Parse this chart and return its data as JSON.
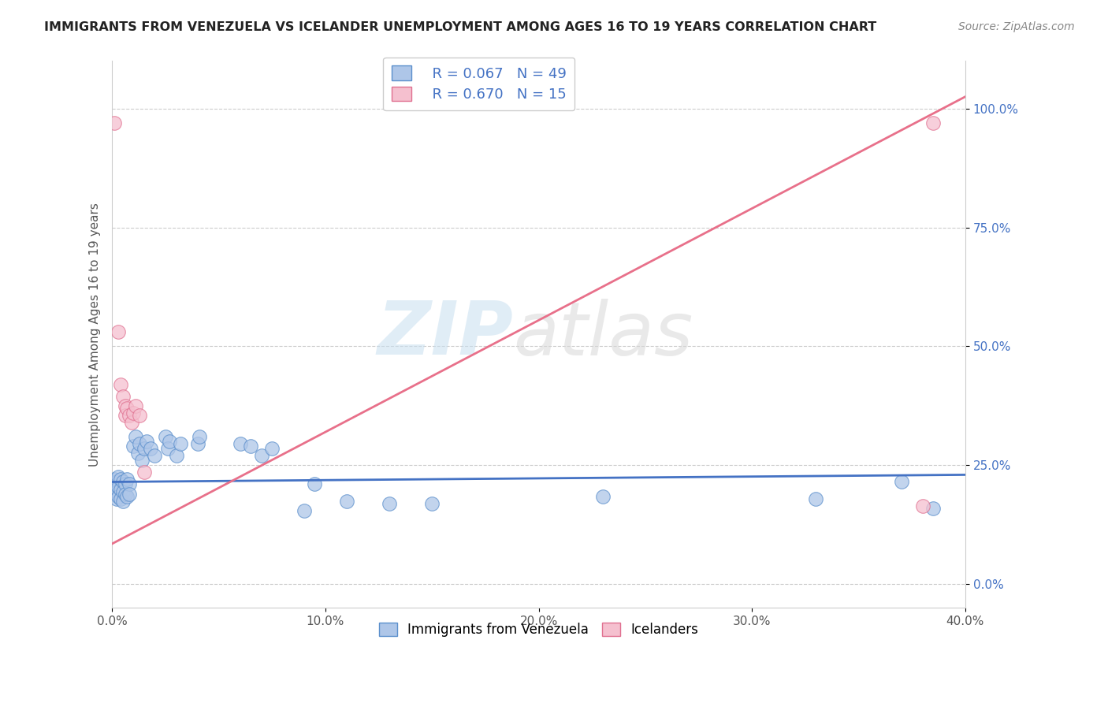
{
  "title": "IMMIGRANTS FROM VENEZUELA VS ICELANDER UNEMPLOYMENT AMONG AGES 16 TO 19 YEARS CORRELATION CHART",
  "source": "Source: ZipAtlas.com",
  "ylabel": "Unemployment Among Ages 16 to 19 years",
  "xlim": [
    0.0,
    0.4
  ],
  "ylim": [
    -0.05,
    1.1
  ],
  "xticks": [
    0.0,
    0.1,
    0.2,
    0.3,
    0.4
  ],
  "xtick_labels": [
    "0.0%",
    "10.0%",
    "20.0%",
    "30.0%",
    "40.0%"
  ],
  "yticks": [
    0.0,
    0.25,
    0.5,
    0.75,
    1.0
  ],
  "ytick_labels": [
    "0.0%",
    "25.0%",
    "50.0%",
    "75.0%",
    "100.0%"
  ],
  "legend_r1": "R = 0.067",
  "legend_n1": "N = 49",
  "legend_r2": "R = 0.670",
  "legend_n2": "N = 15",
  "watermark_zip": "ZIP",
  "watermark_atlas": "atlas",
  "blue_color": "#aec6e8",
  "blue_edge_color": "#5b8fcc",
  "pink_color": "#f5c0cf",
  "pink_edge_color": "#e07090",
  "blue_line_color": "#4472c4",
  "pink_line_color": "#e8708a",
  "blue_scatter": [
    [
      0.001,
      0.22
    ],
    [
      0.001,
      0.2
    ],
    [
      0.002,
      0.215
    ],
    [
      0.002,
      0.195
    ],
    [
      0.002,
      0.18
    ],
    [
      0.003,
      0.225
    ],
    [
      0.003,
      0.205
    ],
    [
      0.003,
      0.185
    ],
    [
      0.004,
      0.22
    ],
    [
      0.004,
      0.2
    ],
    [
      0.004,
      0.18
    ],
    [
      0.005,
      0.215
    ],
    [
      0.005,
      0.195
    ],
    [
      0.005,
      0.175
    ],
    [
      0.006,
      0.21
    ],
    [
      0.006,
      0.19
    ],
    [
      0.007,
      0.22
    ],
    [
      0.007,
      0.185
    ],
    [
      0.008,
      0.21
    ],
    [
      0.008,
      0.19
    ],
    [
      0.01,
      0.29
    ],
    [
      0.011,
      0.31
    ],
    [
      0.012,
      0.275
    ],
    [
      0.013,
      0.295
    ],
    [
      0.014,
      0.26
    ],
    [
      0.015,
      0.285
    ],
    [
      0.016,
      0.3
    ],
    [
      0.018,
      0.285
    ],
    [
      0.02,
      0.27
    ],
    [
      0.025,
      0.31
    ],
    [
      0.026,
      0.285
    ],
    [
      0.027,
      0.3
    ],
    [
      0.03,
      0.27
    ],
    [
      0.032,
      0.295
    ],
    [
      0.04,
      0.295
    ],
    [
      0.041,
      0.31
    ],
    [
      0.06,
      0.295
    ],
    [
      0.065,
      0.29
    ],
    [
      0.07,
      0.27
    ],
    [
      0.075,
      0.285
    ],
    [
      0.09,
      0.155
    ],
    [
      0.095,
      0.21
    ],
    [
      0.11,
      0.175
    ],
    [
      0.13,
      0.17
    ],
    [
      0.15,
      0.17
    ],
    [
      0.23,
      0.185
    ],
    [
      0.33,
      0.18
    ],
    [
      0.37,
      0.215
    ],
    [
      0.385,
      0.16
    ]
  ],
  "pink_scatter": [
    [
      0.001,
      0.97
    ],
    [
      0.003,
      0.53
    ],
    [
      0.004,
      0.42
    ],
    [
      0.005,
      0.395
    ],
    [
      0.006,
      0.375
    ],
    [
      0.006,
      0.355
    ],
    [
      0.007,
      0.37
    ],
    [
      0.008,
      0.355
    ],
    [
      0.009,
      0.34
    ],
    [
      0.01,
      0.36
    ],
    [
      0.011,
      0.375
    ],
    [
      0.013,
      0.355
    ],
    [
      0.015,
      0.235
    ],
    [
      0.38,
      0.165
    ],
    [
      0.385,
      0.97
    ]
  ],
  "blue_line_x": [
    0.0,
    0.4
  ],
  "blue_line_y": [
    0.215,
    0.23
  ],
  "pink_line_x": [
    0.0,
    0.4
  ],
  "pink_line_y": [
    0.085,
    1.025
  ],
  "background_color": "#ffffff",
  "grid_color": "#cccccc",
  "title_fontsize": 11.5,
  "source_fontsize": 10,
  "tick_fontsize": 11,
  "ylabel_fontsize": 11,
  "legend_fontsize": 13
}
